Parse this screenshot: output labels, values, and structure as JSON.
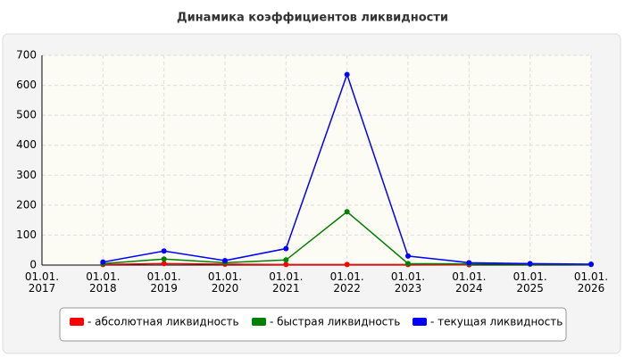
{
  "chart_data": {
    "type": "line",
    "title": "Динамика коэффициентов ликвидности",
    "categories": [
      "01.01.\n2017",
      "01.01.\n2018",
      "01.01.\n2019",
      "01.01.\n2020",
      "01.01.\n2021",
      "01.01.\n2022",
      "01.01.\n2023",
      "01.01.\n2024",
      "01.01.\n2025",
      "01.01.\n2026"
    ],
    "series": [
      {
        "name": "- абсолютная ликвидность",
        "color": "#ff0000",
        "values": [
          null,
          2,
          5,
          3,
          2,
          2,
          2,
          1,
          null,
          null
        ]
      },
      {
        "name": "- быстрая ликвидность",
        "color": "#008000",
        "values": [
          null,
          5,
          20,
          8,
          17,
          178,
          5,
          4,
          3,
          2
        ]
      },
      {
        "name": "- текущая ликвидность",
        "color": "#0000ff",
        "values": [
          null,
          10,
          47,
          15,
          55,
          636,
          30,
          8,
          5,
          3
        ]
      }
    ],
    "ylim": [
      0,
      700
    ],
    "yticks": [
      0,
      100,
      200,
      300,
      400,
      500,
      600,
      700
    ],
    "grid": true
  }
}
